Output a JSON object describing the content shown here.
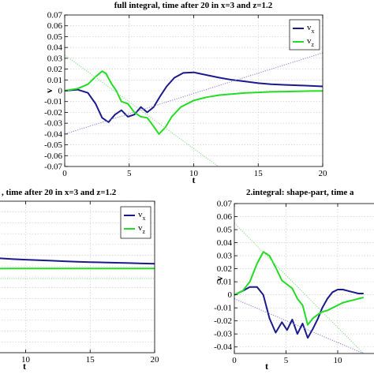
{
  "chart_data": [
    {
      "type": "line",
      "title": "full integral, time after 20 in x=3 and z=1.2",
      "xlabel": "t",
      "ylabel": "v",
      "xlim": [
        0,
        20
      ],
      "ylim": [
        -0.07,
        0.07
      ],
      "xticks": [
        "0",
        "5",
        "10",
        "15",
        "20"
      ],
      "yticks": [
        "0.07",
        "0.06",
        "0.05",
        "0.04",
        "0.03",
        "0.02",
        "0.01",
        "0",
        "-0.01",
        "-0.02",
        "-0.03",
        "-0.04",
        "-0.05",
        "-0.06",
        "-0.07"
      ],
      "grid": true,
      "legend": {
        "position": "top-right",
        "entries": [
          "v_x",
          "v_z"
        ]
      },
      "series": [
        {
          "name": "v_x",
          "color": "#1a1a8c",
          "x": [
            0,
            1,
            1.8,
            2.4,
            2.9,
            3.4,
            3.9,
            4.4,
            4.9,
            5.4,
            5.9,
            6.4,
            6.9,
            7.4,
            7.9,
            8.5,
            9.2,
            10,
            11,
            12,
            13,
            14,
            15,
            16,
            17,
            18,
            19,
            20
          ],
          "y": [
            0,
            0.001,
            -0.002,
            -0.012,
            -0.025,
            -0.029,
            -0.022,
            -0.018,
            -0.024,
            -0.022,
            -0.015,
            -0.02,
            -0.015,
            -0.005,
            0.004,
            0.012,
            0.0165,
            0.017,
            0.0145,
            0.012,
            0.01,
            0.0085,
            0.007,
            0.006,
            0.0055,
            0.005,
            0.0045,
            0.004
          ]
        },
        {
          "name": "v_z",
          "color": "#22dd22",
          "x": [
            0,
            1,
            1.8,
            2.4,
            2.9,
            3.2,
            3.6,
            4,
            4.4,
            4.9,
            5.4,
            5.9,
            6.4,
            6.9,
            7.3,
            7.8,
            8.3,
            9,
            10,
            11,
            12,
            13,
            14,
            15,
            16,
            17,
            18,
            19,
            20
          ],
          "y": [
            0,
            0.002,
            0.006,
            0.013,
            0.018,
            0.016,
            0.007,
            0.0,
            -0.01,
            -0.012,
            -0.02,
            -0.024,
            -0.025,
            -0.033,
            -0.04,
            -0.034,
            -0.024,
            -0.015,
            -0.009,
            -0.006,
            -0.004,
            -0.003,
            -0.002,
            -0.0015,
            -0.001,
            -0.0008,
            -0.0005,
            -0.0003,
            -0.0002
          ]
        },
        {
          "name": "",
          "color": "#8a8ad6",
          "style": "dotted",
          "x": [
            0,
            20
          ],
          "y": [
            -0.04,
            0.035
          ]
        },
        {
          "name": "",
          "color": "#8ae08a",
          "style": "dotted",
          "x": [
            0,
            20
          ],
          "y": [
            0.033,
            -0.14
          ]
        }
      ]
    },
    {
      "type": "line",
      "title": ", time after 20 in x=3 and z=1.2",
      "xlabel": "t",
      "ylabel": "",
      "xlim": [
        0,
        20
      ],
      "ylim": [
        -0.07,
        0.07
      ],
      "xticks": [
        "10",
        "15",
        "20"
      ],
      "yticks": [],
      "grid": true,
      "legend": {
        "position": "top-right",
        "entries": [
          "v_x",
          "v_z"
        ]
      },
      "series": [
        {
          "name": "v_x",
          "color": "#1a1a8c",
          "x": [
            0,
            1,
            2,
            3,
            4,
            5,
            6,
            7,
            8,
            9,
            10,
            11,
            12,
            13,
            14,
            15,
            16,
            17,
            18,
            19,
            20
          ],
          "y": [
            0.025,
            0.024,
            0.023,
            0.022,
            0.021,
            0.02,
            0.019,
            0.018,
            0.0172,
            0.0165,
            0.016,
            0.0155,
            0.015,
            0.0145,
            0.014,
            0.0137,
            0.0134,
            0.0131,
            0.0128,
            0.0125,
            0.0122
          ]
        },
        {
          "name": "v_z",
          "color": "#22dd22",
          "x": [
            0,
            1,
            2,
            3,
            4,
            5,
            6,
            7,
            8,
            9,
            10,
            11,
            12,
            13,
            14,
            15,
            16,
            17,
            18,
            19,
            20
          ],
          "y": [
            0.002,
            0.004,
            0.0055,
            0.0065,
            0.007,
            0.0073,
            0.0075,
            0.0076,
            0.0077,
            0.0078,
            0.0078,
            0.0078,
            0.0078,
            0.0078,
            0.0078,
            0.0078,
            0.0078,
            0.0078,
            0.0078,
            0.0078,
            0.0078
          ]
        },
        {
          "name": "",
          "color": "#8a8ad6",
          "style": "dotted",
          "x": [
            0,
            20
          ],
          "y": [
            0.045,
            0.14
          ]
        },
        {
          "name": "",
          "color": "#8ae08a",
          "style": "dotted",
          "x": [
            0,
            20
          ],
          "y": [
            -0.0015,
            -0.0015
          ]
        }
      ]
    },
    {
      "type": "line",
      "title": "2.integral: shape-part, time a",
      "xlabel": "t",
      "ylabel": "v",
      "xlim": [
        0,
        20
      ],
      "ylim": [
        -0.045,
        0.07
      ],
      "xticks": [
        "0",
        "5",
        "10"
      ],
      "yticks": [
        "0.07",
        "0.06",
        "0.05",
        "0.04",
        "0.03",
        "0.02",
        "0.01",
        "0",
        "-0.01",
        "-0.02",
        "-0.03",
        "-0.04"
      ],
      "grid": true,
      "legend": {
        "position": "top-right",
        "entries": []
      },
      "series": [
        {
          "name": "v_x",
          "color": "#1a1a8c",
          "x": [
            0,
            0.8,
            1.5,
            2.2,
            2.8,
            3.4,
            4,
            4.6,
            5.1,
            5.6,
            6.1,
            6.6,
            7.1,
            7.6,
            8.1,
            8.5,
            9,
            9.5,
            10,
            10.5,
            11,
            11.5,
            12,
            12.5
          ],
          "y": [
            0,
            0.003,
            0.006,
            0.006,
            0.0,
            -0.018,
            -0.029,
            -0.021,
            -0.027,
            -0.019,
            -0.03,
            -0.022,
            -0.033,
            -0.026,
            -0.018,
            -0.01,
            -0.003,
            0.002,
            0.004,
            0.004,
            0.003,
            0.002,
            0.001,
            0.001
          ]
        },
        {
          "name": "v_z",
          "color": "#22dd22",
          "x": [
            0,
            0.8,
            1.5,
            2.2,
            2.8,
            3.4,
            4,
            4.6,
            5.1,
            5.6,
            6.1,
            6.6,
            7.1,
            7.6,
            8.1,
            8.5,
            9,
            9.5,
            10,
            10.5,
            11,
            11.5,
            12,
            12.5
          ],
          "y": [
            0,
            0.003,
            0.01,
            0.024,
            0.033,
            0.03,
            0.021,
            0.011,
            0.008,
            0.005,
            -0.003,
            -0.008,
            -0.023,
            -0.018,
            -0.015,
            -0.013,
            -0.012,
            -0.01,
            -0.008,
            -0.006,
            -0.005,
            -0.004,
            -0.003,
            -0.002
          ]
        },
        {
          "name": "",
          "color": "#8a8ad6",
          "style": "dotted",
          "x": [
            0,
            12.5
          ],
          "y": [
            -0.003,
            -0.045
          ]
        },
        {
          "name": "",
          "color": "#8ae08a",
          "style": "dotted",
          "x": [
            0,
            12.5
          ],
          "y": [
            0.055,
            -0.045
          ]
        }
      ]
    }
  ]
}
